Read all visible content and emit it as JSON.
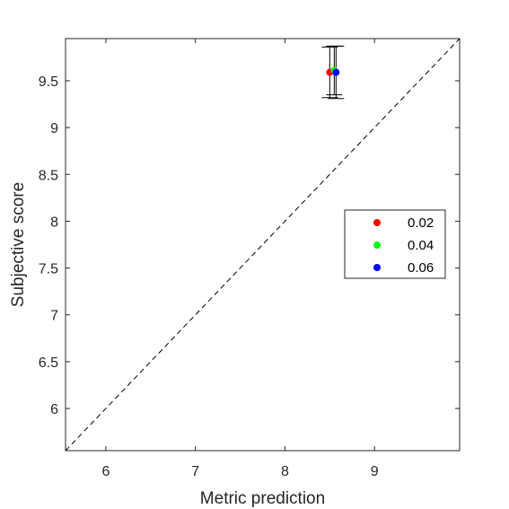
{
  "chart_data": {
    "type": "scatter",
    "title": "",
    "xlabel": "Metric prediction",
    "ylabel": "Subjective score",
    "xlim": [
      5.55,
      9.95
    ],
    "ylim": [
      5.55,
      9.95
    ],
    "xticks": [
      6,
      7,
      8,
      9
    ],
    "xtick_labels": [
      "6",
      "7",
      "8",
      "9"
    ],
    "yticks": [
      6,
      6.5,
      7,
      7.5,
      8,
      8.5,
      9,
      9.5
    ],
    "ytick_labels": [
      "6",
      "6.5",
      "7",
      "7.5",
      "8",
      "8.5",
      "9",
      "9.5"
    ],
    "grid": false,
    "box": true,
    "reference_line": {
      "from": [
        5.55,
        5.55
      ],
      "to": [
        9.95,
        9.95
      ],
      "style": "dashed",
      "color": "#000000"
    },
    "legend_location": "right",
    "series": [
      {
        "name": "0.02",
        "color": "#ff0000",
        "x": [
          8.5
        ],
        "y": [
          9.59
        ],
        "err_low": [
          9.32
        ],
        "err_high": [
          9.86
        ]
      },
      {
        "name": "0.04",
        "color": "#00ff00",
        "x": [
          8.55
        ],
        "y": [
          9.61
        ],
        "err_low": [
          9.35
        ],
        "err_high": [
          9.87
        ]
      },
      {
        "name": "0.06",
        "color": "#0000ff",
        "x": [
          8.57
        ],
        "y": [
          9.59
        ],
        "err_low": [
          9.31
        ],
        "err_high": [
          9.87
        ]
      }
    ]
  }
}
